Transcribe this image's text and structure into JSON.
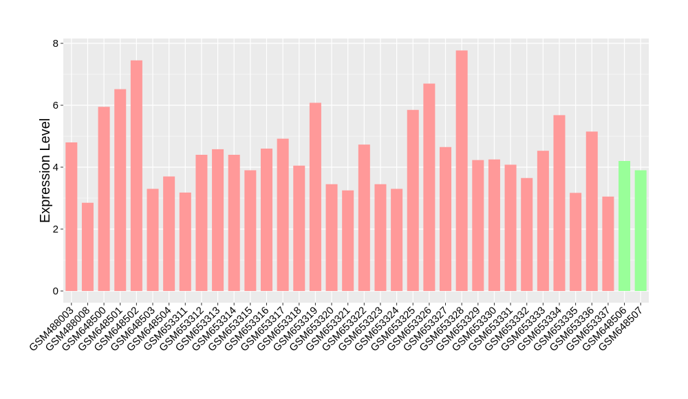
{
  "chart_data": {
    "type": "bar",
    "title": "",
    "xlabel": "",
    "ylabel": "Expression Level",
    "ylim": [
      0,
      8
    ],
    "yticks": [
      0,
      2,
      4,
      6,
      8
    ],
    "grid": true,
    "legend": "none",
    "colors": {
      "panel": "#ebebeb",
      "grid": "#ffffff",
      "group1": "#ff9999",
      "group2": "#99ff99"
    },
    "categories": [
      "GSM488003",
      "GSM488008",
      "GSM648500",
      "GSM648501",
      "GSM648502",
      "GSM648503",
      "GSM648504",
      "GSM653311",
      "GSM653312",
      "GSM653313",
      "GSM653314",
      "GSM653315",
      "GSM653316",
      "GSM653317",
      "GSM653318",
      "GSM653319",
      "GSM653320",
      "GSM653321",
      "GSM653322",
      "GSM653323",
      "GSM653324",
      "GSM653325",
      "GSM653326",
      "GSM653327",
      "GSM653328",
      "GSM653329",
      "GSM653330",
      "GSM653331",
      "GSM653332",
      "GSM653333",
      "GSM653334",
      "GSM653335",
      "GSM653336",
      "GSM653337",
      "GSM648506",
      "GSM648507"
    ],
    "values": [
      4.8,
      2.85,
      5.95,
      6.52,
      7.45,
      3.3,
      3.7,
      3.18,
      4.4,
      4.58,
      4.4,
      3.9,
      4.6,
      4.92,
      4.05,
      6.08,
      3.45,
      3.25,
      4.73,
      3.45,
      3.3,
      5.85,
      6.7,
      4.65,
      7.77,
      4.23,
      4.25,
      4.08,
      3.65,
      4.53,
      5.68,
      3.17,
      5.15,
      3.05,
      4.2,
      3.9
    ],
    "groups": [
      "group1",
      "group1",
      "group1",
      "group1",
      "group1",
      "group1",
      "group1",
      "group1",
      "group1",
      "group1",
      "group1",
      "group1",
      "group1",
      "group1",
      "group1",
      "group1",
      "group1",
      "group1",
      "group1",
      "group1",
      "group1",
      "group1",
      "group1",
      "group1",
      "group1",
      "group1",
      "group1",
      "group1",
      "group1",
      "group1",
      "group1",
      "group1",
      "group1",
      "group1",
      "group2",
      "group2"
    ]
  }
}
